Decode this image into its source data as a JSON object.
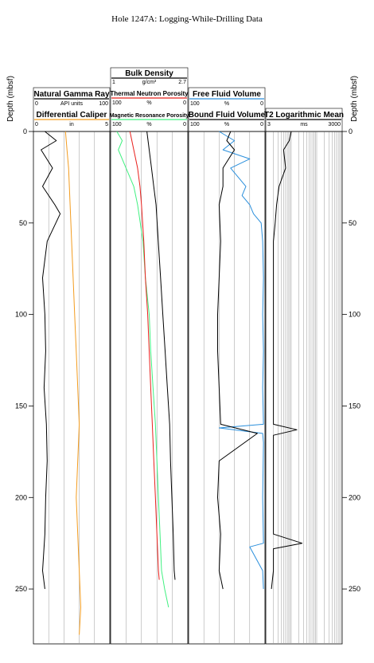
{
  "chart_data": {
    "type": "line",
    "title": "Hole 1247A: Logging-While-Drilling Data",
    "ylabel_left": "Depth (mbsf)",
    "ylabel_right": "Depth (mbsf)",
    "depth_range": [
      0,
      280
    ],
    "depth_ticks": [
      "0",
      "50",
      "100",
      "150",
      "200",
      "250"
    ],
    "tracks": [
      {
        "headers": [
          {
            "name": "Natural Gamma Ray",
            "unit": "API units",
            "min": "0",
            "max": "100",
            "color": "#000000"
          },
          {
            "name": "Differential Caliper",
            "unit": "in",
            "min": "0",
            "max": "5",
            "color": "#f39c1f"
          }
        ]
      },
      {
        "headers": [
          {
            "name": "Bulk Density",
            "unit": "g/cm³",
            "min": "1",
            "max": "2.7",
            "color": "#000000"
          },
          {
            "name": "Thermal Neutron Porosity",
            "unit": "%",
            "min": "100",
            "max": "0",
            "color": "#e8201c"
          },
          {
            "name": "Magnetic Resonance Porosity",
            "unit": "%",
            "min": "100",
            "max": "0",
            "color": "#40f080"
          }
        ]
      },
      {
        "headers": [
          {
            "name": "Free Fluid Volume",
            "unit": "%",
            "min": "100",
            "max": "0",
            "color": "#2a8fdc"
          },
          {
            "name": "Bound Fluid Volume",
            "unit": "%",
            "min": "100",
            "max": "0",
            "color": "#000000"
          }
        ]
      },
      {
        "headers": [
          {
            "name": "T2 Logarithmic Mean",
            "unit": "ms",
            "min": "3",
            "max": "3000",
            "color": "#000000"
          }
        ]
      }
    ],
    "series": [
      {
        "track": 0,
        "color": "#000000",
        "depth": [
          0,
          5,
          10,
          20,
          30,
          40,
          45,
          60,
          80,
          100,
          120,
          140,
          160,
          180,
          200,
          220,
          240,
          250
        ],
        "values": [
          15,
          30,
          10,
          25,
          12,
          28,
          35,
          18,
          12,
          15,
          16,
          14,
          17,
          18,
          16,
          15,
          12,
          15
        ]
      },
      {
        "track": 0,
        "color": "#f39c1f",
        "depth": [
          0,
          10,
          20,
          40,
          60,
          80,
          100,
          120,
          140,
          160,
          180,
          200,
          220,
          240,
          260,
          275
        ],
        "values": [
          2.1,
          2.2,
          2.3,
          2.4,
          2.5,
          2.6,
          2.7,
          2.8,
          2.9,
          3.0,
          2.9,
          2.8,
          2.9,
          3.0,
          3.1,
          3.0
        ]
      },
      {
        "track": 1,
        "color": "#40f080",
        "depth": [
          0,
          5,
          10,
          20,
          30,
          40,
          60,
          80,
          100,
          120,
          140,
          160,
          180,
          200,
          220,
          240,
          250,
          260
        ],
        "values": [
          92,
          85,
          90,
          80,
          70,
          65,
          58,
          55,
          50,
          48,
          45,
          42,
          40,
          38,
          36,
          34,
          30,
          25
        ]
      },
      {
        "track": 1,
        "color": "#e8201c",
        "depth": [
          0,
          10,
          20,
          30,
          40,
          60,
          80,
          100,
          120,
          140,
          160,
          180,
          200,
          220,
          240,
          245
        ],
        "values": [
          75,
          70,
          65,
          62,
          60,
          57,
          55,
          52,
          50,
          48,
          46,
          44,
          42,
          40,
          38,
          37
        ]
      },
      {
        "track": 1,
        "color": "#000000",
        "depth": [
          0,
          10,
          20,
          30,
          40,
          60,
          80,
          100,
          120,
          140,
          160,
          180,
          200,
          220,
          240,
          245
        ],
        "values": [
          1.8,
          1.85,
          1.9,
          1.95,
          2.0,
          2.05,
          2.1,
          2.15,
          2.2,
          2.25,
          2.3,
          2.32,
          2.35,
          2.38,
          2.4,
          2.42
        ]
      },
      {
        "track": 2,
        "color": "#2a8fdc",
        "depth": [
          0,
          5,
          10,
          15,
          20,
          25,
          30,
          35,
          40,
          45,
          50,
          60,
          80,
          100,
          120,
          140,
          160,
          162,
          165,
          170,
          200,
          225,
          227,
          240,
          250
        ],
        "values": [
          60,
          40,
          55,
          20,
          45,
          35,
          25,
          30,
          20,
          15,
          5,
          3,
          2,
          3,
          2,
          3,
          2,
          60,
          3,
          2,
          3,
          2,
          20,
          3,
          2
        ]
      },
      {
        "track": 2,
        "color": "#000000",
        "depth": [
          0,
          5,
          10,
          20,
          30,
          40,
          60,
          80,
          100,
          120,
          140,
          160,
          165,
          180,
          200,
          220,
          240,
          250
        ],
        "values": [
          45,
          50,
          40,
          55,
          55,
          60,
          58,
          60,
          62,
          62,
          60,
          58,
          10,
          60,
          62,
          58,
          60,
          55
        ]
      },
      {
        "track": 3,
        "color": "#000000",
        "depth": [
          0,
          5,
          10,
          20,
          30,
          40,
          50,
          60,
          80,
          100,
          120,
          140,
          160,
          163,
          166,
          180,
          200,
          220,
          225,
          228,
          240,
          250
        ],
        "values": [
          30,
          25,
          15,
          18,
          10,
          8,
          7,
          6,
          6,
          6,
          6,
          6,
          6,
          50,
          6,
          6,
          6,
          6,
          80,
          6,
          6,
          5
        ]
      }
    ]
  }
}
